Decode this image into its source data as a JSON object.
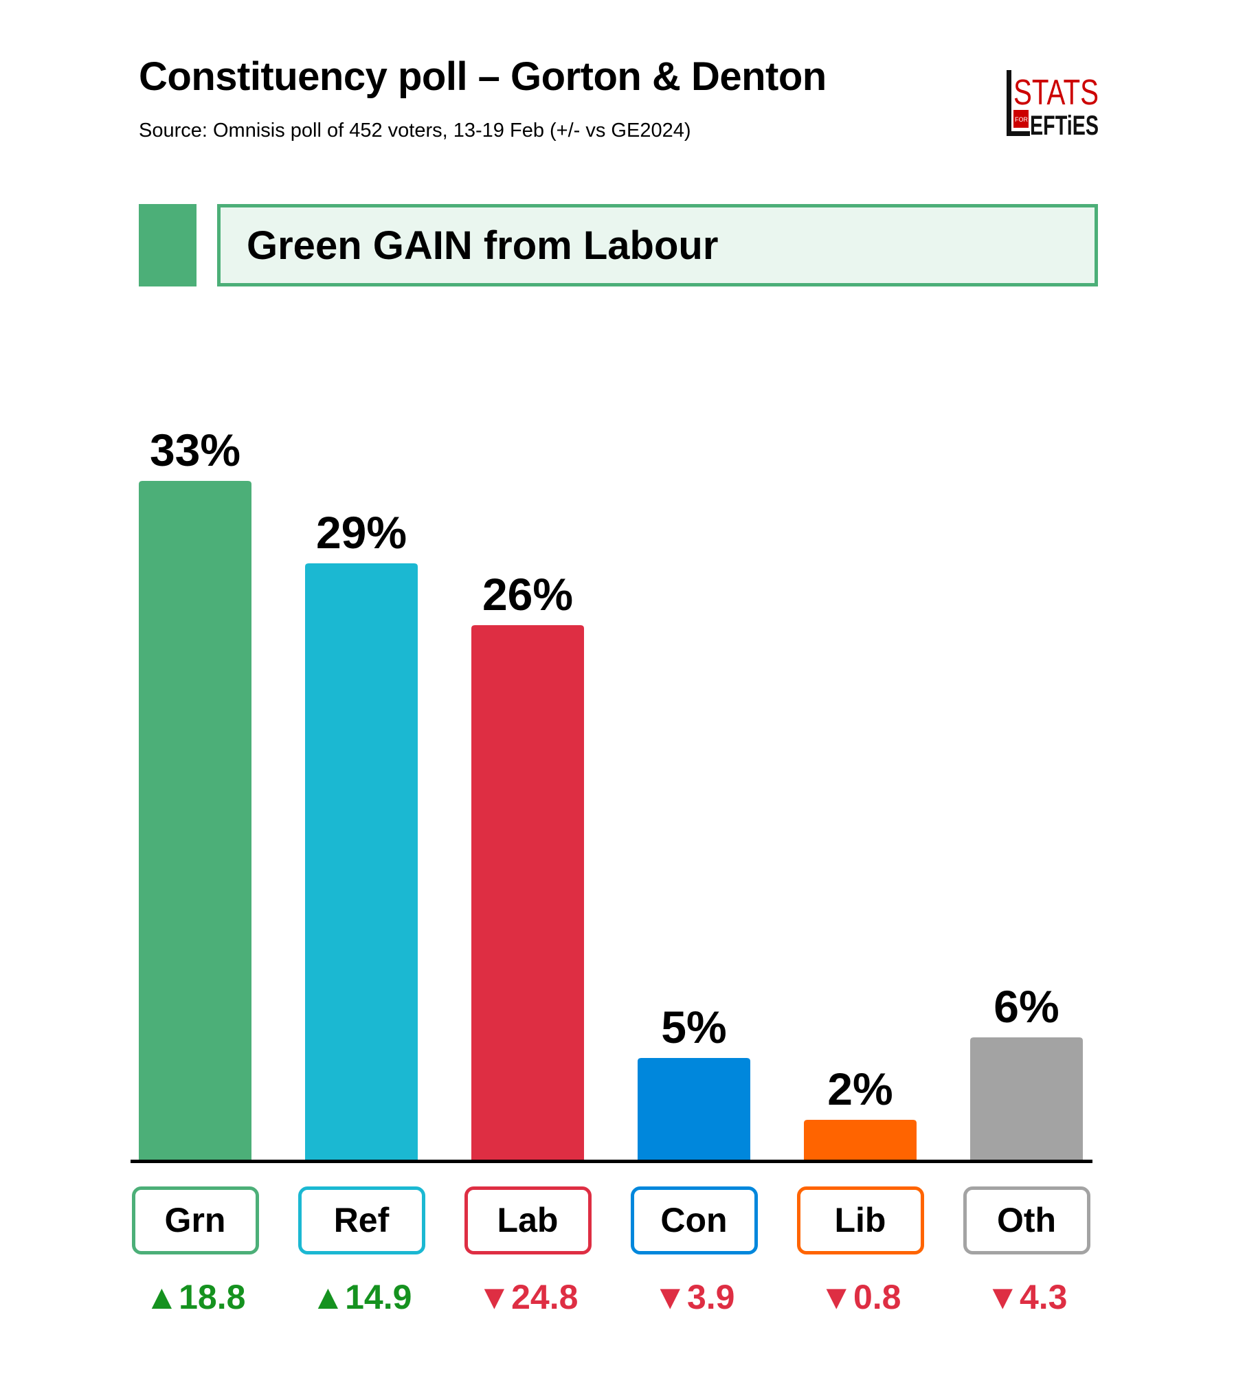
{
  "header": {
    "title": "Constituency poll – Gorton & Denton",
    "subtitle": "Source: Omnisis poll of 452 voters, 13-19 Feb (+/- vs GE2024)",
    "logo_text": "STATS FOR LEFTIES"
  },
  "banner": {
    "text": "Green GAIN from Labour",
    "color": "#4caf78"
  },
  "chart_data": {
    "type": "bar",
    "title": "Constituency poll – Gorton & Denton",
    "xlabel": "",
    "ylabel": "",
    "ylim": [
      0,
      33
    ],
    "grid": false,
    "categories": [
      "Grn",
      "Ref",
      "Lab",
      "Con",
      "Lib",
      "Oth"
    ],
    "values": [
      33,
      29,
      26,
      5,
      2,
      6
    ],
    "value_labels": [
      "33%",
      "29%",
      "26%",
      "5%",
      "2%",
      "6%"
    ],
    "changes": [
      18.8,
      14.9,
      -24.8,
      -3.9,
      -0.8,
      -4.3
    ],
    "change_labels": [
      "▲18.8",
      "▲14.9",
      "▼24.8",
      "▼3.9",
      "▼0.8",
      "▼4.3"
    ],
    "colors": [
      "#4caf78",
      "#1bb8d2",
      "#de2e43",
      "#0087dc",
      "#ff6400",
      "#a3a3a3"
    ],
    "up_color": "#15921f",
    "down_color": "#de2e43"
  }
}
